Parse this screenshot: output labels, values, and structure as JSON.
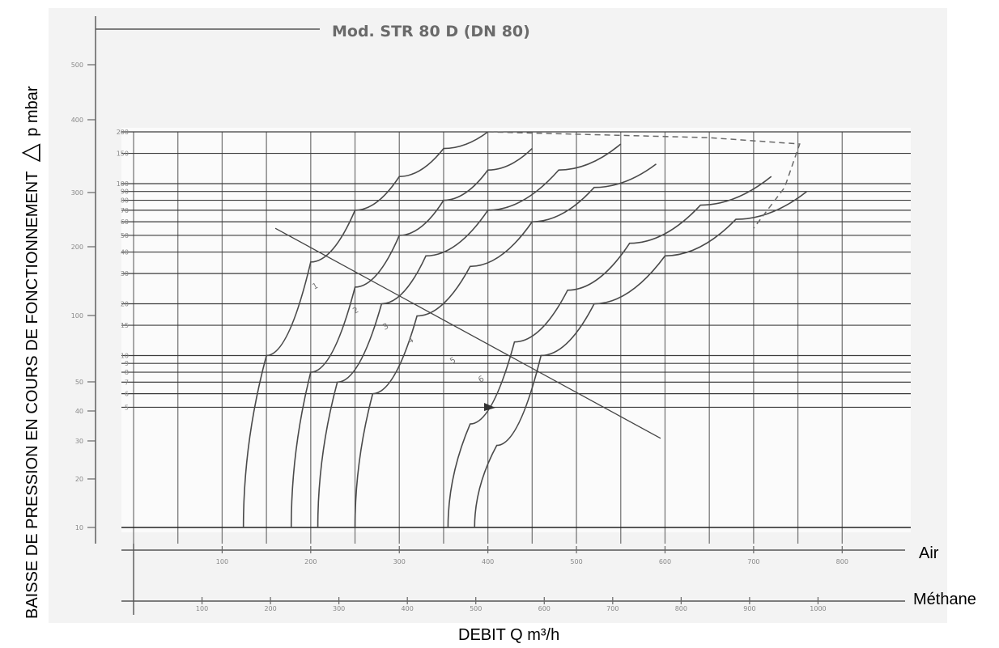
{
  "chart_data": {
    "type": "line",
    "title": "Mod. STR 80 D (DN 80)",
    "xlabel": "DEBIT Q m³/h",
    "ylabel": "BAISSE DE PRESSION EN COURS DE FONCTIONNEMENT",
    "ylabel_symbol": "△",
    "ylabel_unit": "p mbar",
    "x_axes": [
      {
        "name": "Air",
        "ticks": [
          "100",
          "200",
          "300",
          "400",
          "500",
          "600",
          "700",
          "800"
        ],
        "range": [
          0,
          850
        ]
      },
      {
        "name": "Méthane",
        "ticks": [
          "100",
          "200",
          "300",
          "400",
          "500",
          "600",
          "700",
          "800",
          "900",
          "1000"
        ],
        "range": [
          0,
          1100
        ]
      }
    ],
    "y_scale": "log",
    "y_range": [
      1,
      200
    ],
    "y_ticks_inner": [
      "200",
      "150",
      "100",
      "90",
      "80",
      "70",
      "60",
      "50",
      "40",
      "30",
      "20",
      "15",
      "10",
      "9",
      "8",
      "7",
      "6",
      "5"
    ],
    "y_ticks_outer": [
      "500",
      "400",
      "300",
      "200",
      "100",
      "50",
      "40",
      "30",
      "20",
      "10"
    ],
    "series": [
      {
        "name": "1",
        "x": [
          124,
          150,
          200,
          250,
          300,
          350,
          400
        ],
        "y": [
          1,
          10,
          35,
          70,
          110,
          160,
          200
        ]
      },
      {
        "name": "2",
        "x": [
          178,
          200,
          250,
          300,
          350,
          400,
          450
        ],
        "y": [
          1,
          8,
          25,
          50,
          80,
          120,
          160
        ]
      },
      {
        "name": "3",
        "x": [
          208,
          230,
          280,
          330,
          400,
          480,
          550
        ],
        "y": [
          1,
          7,
          20,
          38,
          70,
          120,
          170
        ]
      },
      {
        "name": "4",
        "x": [
          250,
          270,
          320,
          380,
          450,
          520,
          590
        ],
        "y": [
          1,
          6,
          17,
          33,
          60,
          95,
          130
        ]
      },
      {
        "name": "5",
        "x": [
          355,
          380,
          430,
          490,
          560,
          640,
          720
        ],
        "y": [
          1,
          4,
          12,
          24,
          45,
          75,
          110
        ]
      },
      {
        "name": "6",
        "x": [
          385,
          410,
          460,
          520,
          600,
          680,
          760
        ],
        "y": [
          1,
          3,
          10,
          20,
          38,
          62,
          90
        ]
      }
    ],
    "curve_labels": [
      "1",
      "2",
      "3",
      "4",
      "5",
      "6"
    ],
    "grid": true
  }
}
